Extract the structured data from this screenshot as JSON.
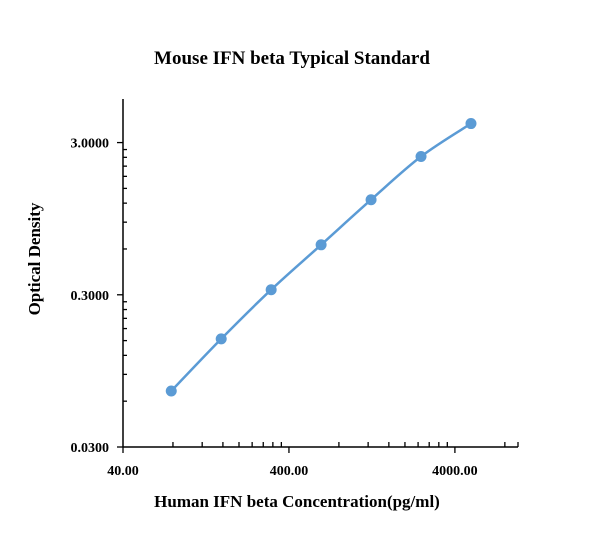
{
  "chart_data": {
    "type": "line",
    "title": "Mouse IFN beta Typical Standard",
    "xlabel": "Human IFN beta Concentration(pg/ml)",
    "ylabel": "Optical Density",
    "x_scale": "log",
    "y_scale": "log",
    "xlim": [
      40,
      9600
    ],
    "ylim": [
      0.03,
      5.8
    ],
    "x_ticks": [
      40,
      400,
      4000
    ],
    "x_tick_labels": [
      "40.00",
      "400.00",
      "4000.00"
    ],
    "y_ticks": [
      0.03,
      0.3,
      3
    ],
    "y_tick_labels": [
      "0.0300",
      "0.3000",
      "3.0000"
    ],
    "grid": false,
    "series": [
      {
        "color": "#5b9bd5",
        "marker": "circle",
        "smooth": true,
        "x": [
          78.13,
          156.25,
          312.5,
          625,
          1250,
          2500,
          5000
        ],
        "y": [
          0.07,
          0.154,
          0.324,
          0.639,
          1.264,
          2.43,
          4.0
        ]
      }
    ]
  }
}
